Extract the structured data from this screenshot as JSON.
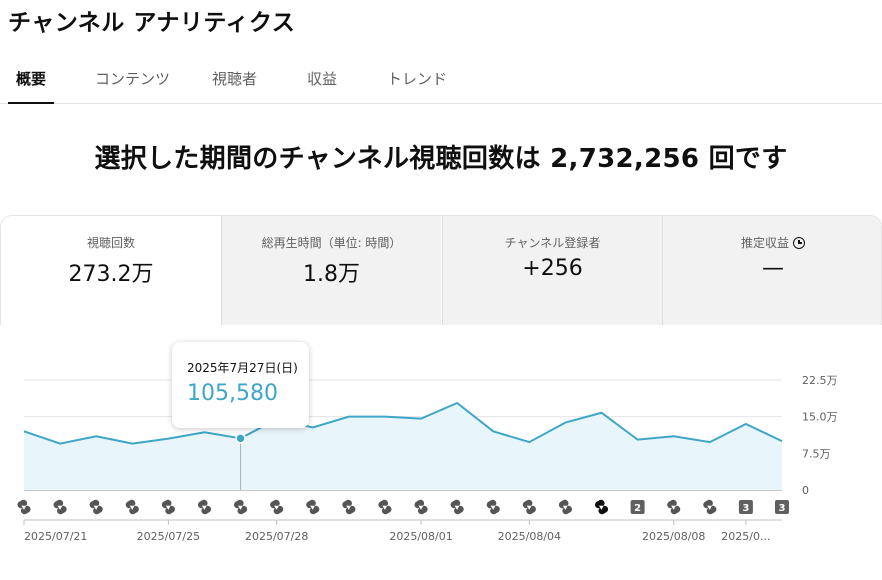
{
  "page": {
    "title": "チャンネル アナリティクス"
  },
  "tabs": [
    {
      "label": "概要",
      "active": true
    },
    {
      "label": "コンテンツ",
      "active": false
    },
    {
      "label": "視聴者",
      "active": false
    },
    {
      "label": "収益",
      "active": false
    },
    {
      "label": "トレンド",
      "active": false
    }
  ],
  "headline": "選択した期間のチャンネル視聴回数は 2,732,256 回です",
  "stats": [
    {
      "label": "視聴回数",
      "value": "273.2万",
      "active": true
    },
    {
      "label": "総再生時間（単位: 時間）",
      "value": "1.8万",
      "active": false
    },
    {
      "label": "チャンネル登録者",
      "value": "+256",
      "active": false
    },
    {
      "label": "推定収益",
      "value": "—",
      "active": false,
      "icon": "clock-icon"
    }
  ],
  "tooltip": {
    "date": "2025年7月27日(日)",
    "value": "105,580"
  },
  "colors": {
    "line": "#3ea6c7",
    "area": "#e8f5fa",
    "tooltip_value": "#3ea6c7"
  },
  "chart_data": {
    "type": "area",
    "x": [
      "2025-07-21",
      "2025-07-22",
      "2025-07-23",
      "2025-07-24",
      "2025-07-25",
      "2025-07-26",
      "2025-07-27",
      "2025-07-28",
      "2025-07-29",
      "2025-07-30",
      "2025-07-31",
      "2025-08-01",
      "2025-08-02",
      "2025-08-03",
      "2025-08-04",
      "2025-08-05",
      "2025-08-06",
      "2025-08-07",
      "2025-08-08",
      "2025-08-09",
      "2025-08-10",
      "2025-08-11"
    ],
    "series": [
      {
        "values": [
          120000,
          95000,
          110000,
          95000,
          105000,
          118000,
          105580,
          145000,
          128000,
          150000,
          150000,
          146000,
          178000,
          120000,
          98000,
          138000,
          158000,
          103000,
          110000,
          98000,
          135000,
          100000
        ]
      }
    ],
    "y_ticks": [
      "0",
      "7.5万",
      "15.0万",
      "22.5万"
    ],
    "y_tick_values": [
      0,
      75000,
      150000,
      225000
    ],
    "ylim": [
      0,
      225000
    ],
    "x_tick_labels": [
      {
        "index": 0,
        "label": "2025/07/21"
      },
      {
        "index": 4,
        "label": "2025/07/25"
      },
      {
        "index": 7,
        "label": "2025/07/28"
      },
      {
        "index": 11,
        "label": "2025/08/01"
      },
      {
        "index": 14,
        "label": "2025/08/04"
      },
      {
        "index": 18,
        "label": "2025/08/08"
      },
      {
        "index": 20,
        "label": "2025/0..."
      }
    ],
    "highlight_index": 6,
    "grid": true,
    "upload_markers": [
      {
        "index": 0,
        "kind": "shorts"
      },
      {
        "index": 1,
        "kind": "shorts"
      },
      {
        "index": 2,
        "kind": "shorts"
      },
      {
        "index": 3,
        "kind": "shorts"
      },
      {
        "index": 4,
        "kind": "shorts"
      },
      {
        "index": 5,
        "kind": "shorts"
      },
      {
        "index": 6,
        "kind": "shorts"
      },
      {
        "index": 7,
        "kind": "shorts"
      },
      {
        "index": 8,
        "kind": "shorts"
      },
      {
        "index": 9,
        "kind": "shorts"
      },
      {
        "index": 10,
        "kind": "shorts"
      },
      {
        "index": 11,
        "kind": "shorts"
      },
      {
        "index": 12,
        "kind": "shorts"
      },
      {
        "index": 13,
        "kind": "shorts"
      },
      {
        "index": 14,
        "kind": "shorts"
      },
      {
        "index": 15,
        "kind": "shorts"
      },
      {
        "index": 16,
        "kind": "shorts-black"
      },
      {
        "index": 17,
        "kind": "count",
        "count": "2"
      },
      {
        "index": 18,
        "kind": "shorts"
      },
      {
        "index": 19,
        "kind": "shorts"
      },
      {
        "index": 20,
        "kind": "count",
        "count": "3"
      },
      {
        "index": 21,
        "kind": "count",
        "count": "3"
      }
    ]
  }
}
